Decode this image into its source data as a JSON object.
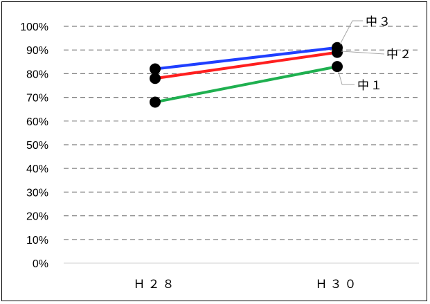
{
  "chart_data": {
    "type": "line",
    "categories": [
      "Ｈ２８",
      "Ｈ３０"
    ],
    "series": [
      {
        "name": "中３",
        "values": [
          82,
          91
        ],
        "color": "#1f3fff"
      },
      {
        "name": "中２",
        "values": [
          78,
          89
        ],
        "color": "#ff1f1f"
      },
      {
        "name": "中１",
        "values": [
          68,
          83
        ],
        "color": "#1fb050"
      }
    ],
    "yticks": [
      "0%",
      "10%",
      "20%",
      "30%",
      "40%",
      "50%",
      "60%",
      "70%",
      "80%",
      "90%",
      "100%"
    ],
    "ylim": [
      0,
      100
    ],
    "grid": "dashed horizontal",
    "legend": "data labels at right end of each line",
    "marker_color": "#000000"
  }
}
